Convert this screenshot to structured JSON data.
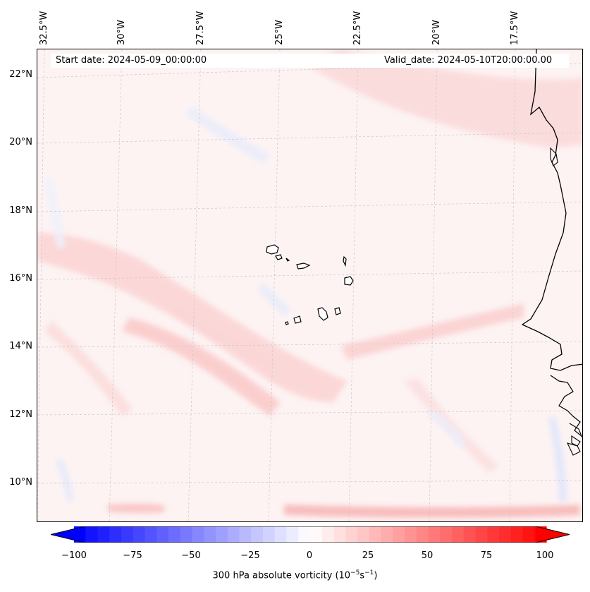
{
  "map": {
    "lon_labels": [
      "32.5°W",
      "30°W",
      "27.5°W",
      "25°W",
      "22.5°W",
      "20°W",
      "17.5°W"
    ],
    "lat_labels": [
      "22°N",
      "20°N",
      "18°N",
      "16°N",
      "14°N",
      "12°N",
      "10°N"
    ],
    "start_date": "Start date: 2024-05-09_00:00:00",
    "valid_date": "Valid_date: 2024-05-10T20:00:00.00",
    "land_color": "none",
    "coast_color": "#000000"
  },
  "colorbar": {
    "ticks": [
      "−100",
      "−75",
      "−50",
      "−25",
      "0",
      "25",
      "50",
      "75",
      "100"
    ],
    "title_main": "300 hPa absolute vorticity (10",
    "exp1": "−5",
    "title_mid": "s",
    "exp2": "−1",
    "title_end": ")",
    "cmap": "bwr",
    "vmin": -100,
    "vmax": 100,
    "extend": "both"
  }
}
